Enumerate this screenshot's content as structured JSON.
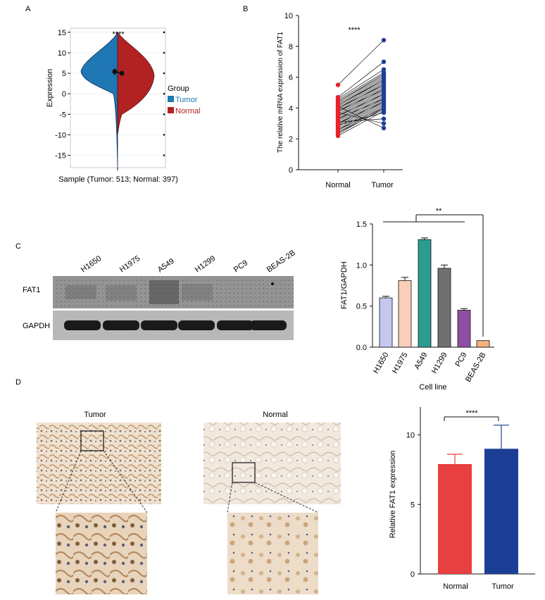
{
  "panels": {
    "A": {
      "letter": "A",
      "ylabel": "Expression",
      "xlabel": "Sample (Tumor: 513; Normal: 397)",
      "significance": "****",
      "yticks": [
        15,
        10,
        5,
        0,
        -5,
        -10,
        -15
      ],
      "ytick_labels": [
        "15",
        "10",
        "5",
        "0",
        "-5",
        "-10",
        "-15"
      ],
      "legend": {
        "title": "Group",
        "items": [
          "Tumor",
          "Normal"
        ]
      },
      "colors": {
        "tumor": "#1f77b4",
        "normal": "#b22222"
      }
    },
    "B": {
      "letter": "B",
      "ylabel": "The relative mRNA expression of FAT1",
      "significance": "****",
      "categories": [
        "Normal",
        "Tumor"
      ],
      "yticks": [
        "0",
        "2",
        "4",
        "6",
        "8",
        "10"
      ],
      "colors": {
        "normal": "#e8202a",
        "tumor": "#1f3f99"
      }
    },
    "C": {
      "letter": "C",
      "blot_lanes": [
        "H1650",
        "H1975",
        "A549",
        "H1299",
        "PC9",
        "BEAS-2B"
      ],
      "blot_rows": [
        "FAT1",
        "GAPDH"
      ],
      "bar_ylabel": "FAT1/GAPDH",
      "bar_xlabel": "Cell line",
      "yticks": [
        "0.0",
        "0.5",
        "1.0",
        "1.5"
      ],
      "significance": "**"
    },
    "D": {
      "letter": "D",
      "ihc_labels": [
        "Tumor",
        "Normal"
      ],
      "bar_ylabel": "Relative FAT1 expression",
      "categories": [
        "Normal",
        "Tumor"
      ],
      "yticks": [
        "0",
        "5",
        "10"
      ],
      "significance": "****"
    }
  },
  "chart_data": [
    {
      "type": "violin",
      "panel": "A",
      "categories": [
        "Tumor",
        "Normal"
      ],
      "series": [
        {
          "name": "Tumor",
          "mean": 5.4,
          "median": 5.5,
          "range": [
            -18,
            15
          ],
          "color": "#1f77b4"
        },
        {
          "name": "Normal",
          "mean": 5.0,
          "median": 5.0,
          "range": [
            -10,
            15
          ],
          "color": "#b22222"
        }
      ],
      "ylim": [
        -18,
        16
      ]
    },
    {
      "type": "scatter",
      "panel": "B",
      "categories": [
        "Normal",
        "Tumor"
      ],
      "series": [
        {
          "name": "Normal",
          "values": [
            5.5,
            4.7,
            4.6,
            4.5,
            4.4,
            4.3,
            4.2,
            4.1,
            4.0,
            3.9,
            3.8,
            3.7,
            3.6,
            3.5,
            3.4,
            3.3,
            3.2,
            3.1,
            3.0,
            2.9,
            2.8,
            2.7,
            2.6,
            2.5,
            2.4,
            2.3,
            2.2,
            4.0,
            3.5,
            3.0,
            4.2,
            3.8,
            2.6,
            4.4,
            3.3,
            2.9,
            3.7,
            4.1,
            3.1,
            2.4
          ]
        },
        {
          "name": "Tumor",
          "values": [
            8.4,
            7.0,
            6.5,
            6.3,
            6.2,
            6.0,
            5.9,
            5.8,
            5.7,
            5.6,
            5.5,
            5.4,
            5.3,
            5.2,
            5.1,
            5.0,
            4.9,
            4.8,
            4.7,
            4.6,
            4.5,
            4.4,
            4.3,
            4.2,
            4.1,
            4.0,
            3.8,
            5.5,
            4.9,
            4.4,
            5.8,
            5.2,
            4.0,
            6.1,
            4.6,
            3.7,
            3.0,
            2.7,
            3.3,
            3.9
          ]
        }
      ],
      "ylim": [
        0,
        10
      ]
    },
    {
      "type": "bar",
      "panel": "C",
      "categories": [
        "H1650",
        "H1975",
        "A549",
        "H1299",
        "PC9",
        "BEAS-2B"
      ],
      "values": [
        0.6,
        0.81,
        1.31,
        0.96,
        0.45,
        0.08
      ],
      "errors": [
        0.02,
        0.04,
        0.02,
        0.04,
        0.02,
        0.0
      ],
      "colors": [
        "#c5c8ee",
        "#f9cfb8",
        "#2a9d8f",
        "#707070",
        "#8c4fa3",
        "#f6b07a"
      ],
      "ylim": [
        0,
        1.5
      ],
      "xlabel": "Cell line",
      "ylabel": "FAT1/GAPDH"
    },
    {
      "type": "bar",
      "panel": "D",
      "categories": [
        "Normal",
        "Tumor"
      ],
      "values": [
        7.9,
        9.0
      ],
      "errors": [
        0.7,
        1.7
      ],
      "colors": [
        "#e84040",
        "#1c3f95"
      ],
      "ylim": [
        0,
        12
      ],
      "ylabel": "Relative FAT1 expression"
    }
  ]
}
